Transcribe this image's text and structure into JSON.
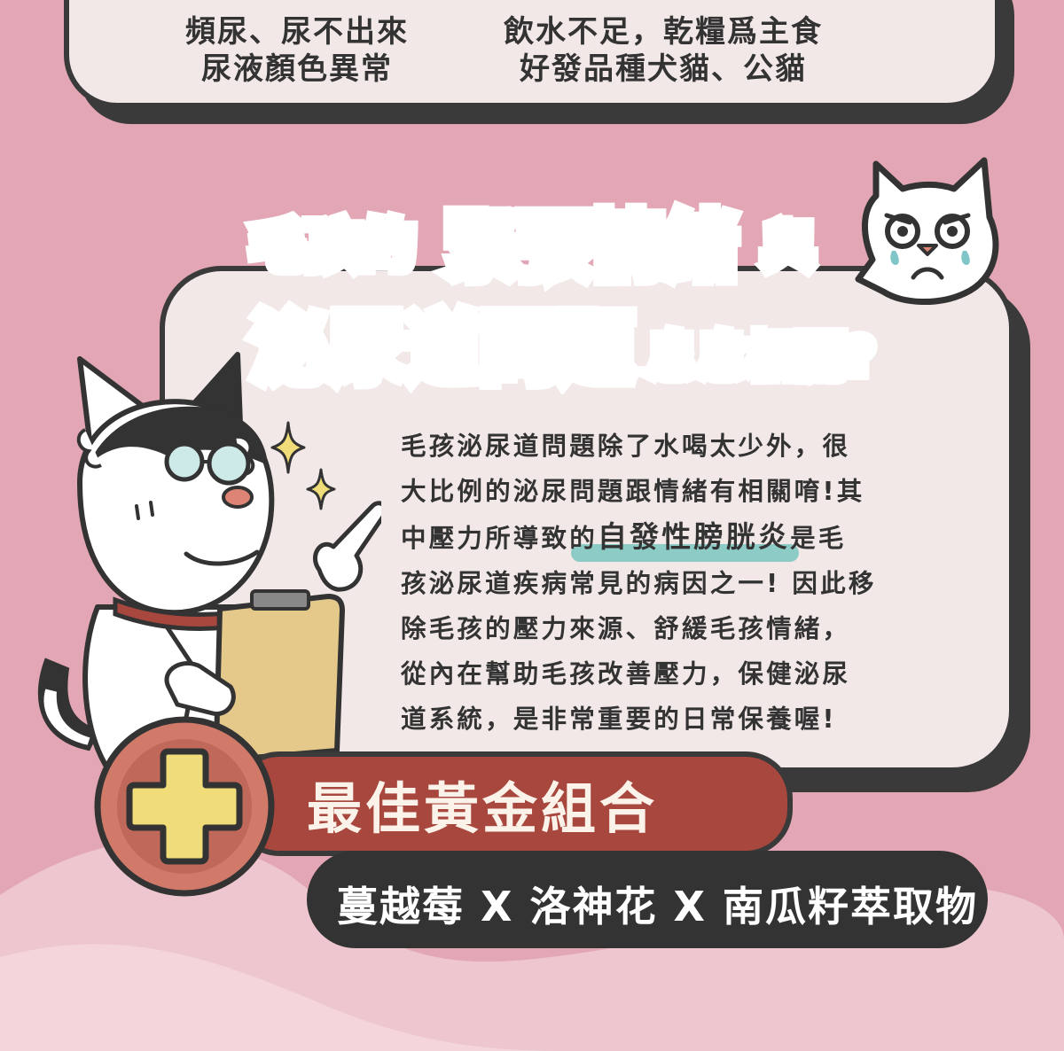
{
  "top_card": {
    "symptoms_line1": "頻尿、尿不出來",
    "symptoms_line2": "尿液顏色異常",
    "causes_line1": "飲水不足，乾糧爲主食",
    "causes_line2": "好發品種犬貓、公貓"
  },
  "headline": {
    "line1_prefix": "毛孩的",
    "line1_highlight": "緊張情緒",
    "line1_suffix": "與",
    "line2_highlight": "泌尿道問題",
    "line2_suffix": "息息相關?"
  },
  "body": {
    "line1": "毛孩泌尿道問題除了水喝太少外，很",
    "line2": "大比例的泌尿問題跟情緒有相關唷!其",
    "line3_prefix": "中壓力所導致的",
    "line3_highlight": "自發性膀胱炎",
    "line3_suffix": "是毛",
    "line4": "孩泌尿道疾病常見的病因之一! 因此移",
    "line5": "除毛孩的壓力來源、舒緩毛孩情緒，",
    "line6": "從內在幫助毛孩改善壓力，保健泌尿",
    "line7": "道系統，是非常重要的日常保養喔!"
  },
  "combo": {
    "title": "最佳黃金組合",
    "ingredients": "蔓越莓 X 洛神花 X 南瓜籽萃取物"
  },
  "icons": {
    "plus_badge": "plus-icon",
    "worried_cat": "worried-cat-icon",
    "doctor_dog": "doctor-dog-illustration",
    "sparkle": "sparkle-icon"
  },
  "colors": {
    "background": "#e2a6b4",
    "card": "#f3e8e8",
    "outline": "#3a3a3a",
    "title_pink": "#dd8474",
    "band_red": "#a8473e",
    "highlight_teal": "#8ccbc6",
    "plus_yellow": "#f0dc78"
  }
}
